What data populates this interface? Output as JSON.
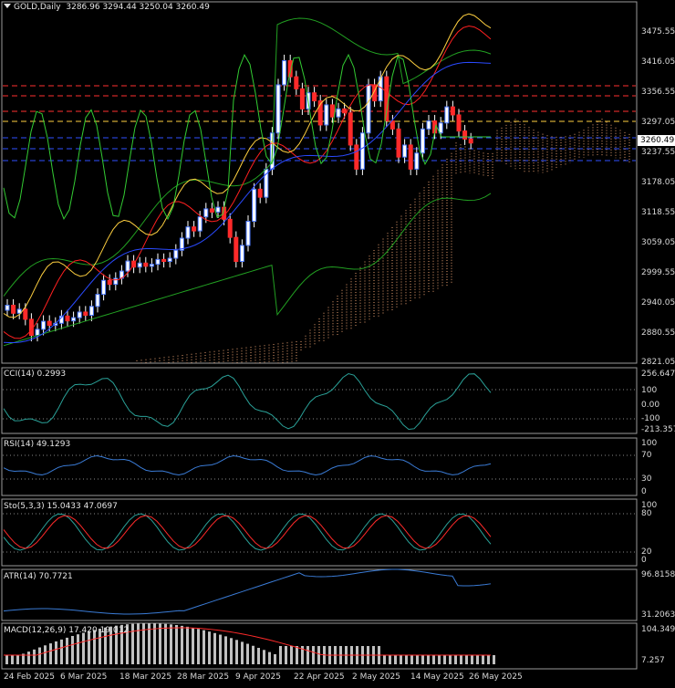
{
  "header": {
    "symbol_label": "GOLD,Daily",
    "ohlc": "3286.96 3294.44 3250.04 3260.49"
  },
  "panels": {
    "cci_label": "CCI(14) 0.2993",
    "rsi_label": "RSI(14) 49.1293",
    "sto_label": "Sto(5,3,3) 15.0433 47.0697",
    "atr_label": "ATR(14) 70.7721",
    "macd_label": "MACD(12,26,9) 17.420 19.012"
  },
  "price_axis": [
    "3475.55",
    "3416.05",
    "3356.55",
    "3297.05",
    "3237.55",
    "3178.05",
    "3118.55",
    "3059.05",
    "2999.55",
    "2940.05",
    "2880.55",
    "2821.05"
  ],
  "current_price": "3260.49",
  "cci_axis": [
    "256.6471",
    "100",
    "0.00",
    "-100",
    "-213.3574"
  ],
  "rsi_axis": [
    "100",
    "70",
    "30",
    "0"
  ],
  "sto_axis": [
    "100",
    "80",
    "20",
    "0"
  ],
  "atr_axis": [
    "96.8158",
    "31.2063"
  ],
  "macd_axis": [
    "104.349",
    "7.257"
  ],
  "dates": [
    "24 Feb 2025",
    "6 Mar 2025",
    "18 Mar 2025",
    "28 Mar 2025",
    "9 Apr 2025",
    "22 Apr 2025",
    "2 May 2025",
    "14 May 2025",
    "26 May 2025"
  ],
  "colors": {
    "background": "#000000",
    "bull_candle": "#4a78ff",
    "bear_candle": "#ff2a2a",
    "bollinger": "#22a022",
    "tenkan": "#ff2020",
    "kijun": "#2a4aff",
    "chikou": "#33cc33",
    "cloud": "#e8a070",
    "cci_line": "#2aa198",
    "rsi_line": "#3a7bd5",
    "sto_main": "#2aa198",
    "sto_signal": "#ff2a2a",
    "atr_line": "#3a7bd5",
    "macd_hist": "#c0c0c0",
    "macd_signal": "#ff2a2a"
  }
}
